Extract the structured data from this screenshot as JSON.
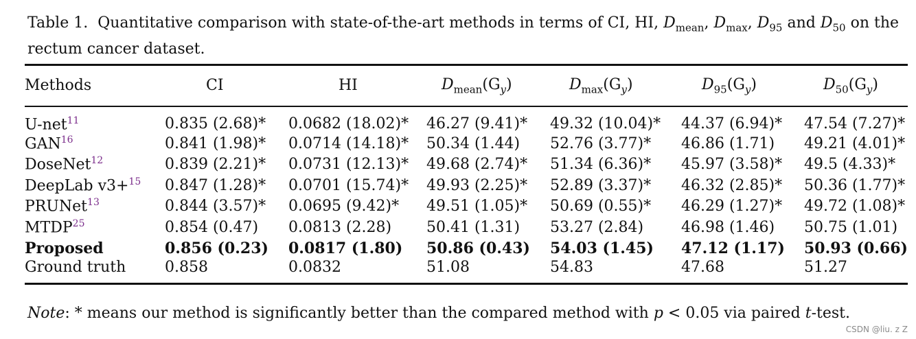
{
  "caption": {
    "label": "Table 1.",
    "line1_text": "Quantitative comparison with state-of-the-art methods in terms of CI, HI,",
    "dmean": "D",
    "dmean_sub": "mean",
    "dmax": "D",
    "dmax_sub": "max",
    "d95": "D",
    "d95_sub": "95",
    "and": "and",
    "d50": "D",
    "d50_sub": "50",
    "on_the": "on the",
    "line2": "rectum cancer dataset."
  },
  "table": {
    "headers": {
      "methods": "Methods",
      "ci": "CI",
      "hi": "HI",
      "dmean_d": "D",
      "dmean_sub": "mean",
      "dmean_unit": "(G",
      "dmax_d": "D",
      "dmax_sub": "max",
      "dmax_unit": "(G",
      "d95_d": "D",
      "d95_sub": "95",
      "d95_unit": "(G",
      "d50_d": "D",
      "d50_sub": "50",
      "d50_unit": "(G",
      "unit_sub": "y",
      "unit_close": ")"
    },
    "rows": [
      {
        "method": "U-net",
        "ref": "11",
        "ci": "0.835 (2.68)*",
        "hi": "0.0682 (18.02)*",
        "dmean": "46.27 (9.41)*",
        "dmax": "49.32 (10.04)*",
        "d95": "44.37 (6.94)*",
        "d50": "47.54 (7.27)*"
      },
      {
        "method": "GAN",
        "ref": "16",
        "ci": "0.841 (1.98)*",
        "hi": "0.0714 (14.18)*",
        "dmean": "50.34 (1.44)",
        "dmax": "52.76 (3.77)*",
        "d95": "46.86 (1.71)",
        "d50": "49.21 (4.01)*"
      },
      {
        "method": "DoseNet",
        "ref": "12",
        "ci": "0.839 (2.21)*",
        "hi": "0.0731 (12.13)*",
        "dmean": "49.68 (2.74)*",
        "dmax": "51.34 (6.36)*",
        "d95": "45.97 (3.58)*",
        "d50": "49.5 (4.33)*"
      },
      {
        "method": "DeepLab v3+",
        "ref": "15",
        "ci": "0.847 (1.28)*",
        "hi": "0.0701 (15.74)*",
        "dmean": "49.93 (2.25)*",
        "dmax": "52.89 (3.37)*",
        "d95": "46.32 (2.85)*",
        "d50": "50.36 (1.77)*"
      },
      {
        "method": "PRUNet",
        "ref": "13",
        "ci": "0.844 (3.57)*",
        "hi": "0.0695 (9.42)*",
        "dmean": "49.51 (1.05)*",
        "dmax": "50.69 (0.55)*",
        "d95": "46.29 (1.27)*",
        "d50": "49.72 (1.08)*"
      },
      {
        "method": "MTDP",
        "ref": "25",
        "ci": "0.854 (0.47)",
        "hi": "0.0813 (2.28)",
        "dmean": "50.41 (1.31)",
        "dmax": "53.27 (2.84)",
        "d95": "46.98 (1.46)",
        "d50": "50.75 (1.01)"
      },
      {
        "method": "Proposed",
        "ref": "",
        "ci": "0.856 (0.23)",
        "hi": "0.0817 (1.80)",
        "dmean": "50.86 (0.43)",
        "dmax": "54.03 (1.45)",
        "d95": "47.12 (1.17)",
        "d50": "50.93 (0.66)"
      },
      {
        "method": "Ground truth",
        "ref": "",
        "ci": "0.858",
        "hi": "0.0832",
        "dmean": "51.08",
        "dmax": "54.83",
        "d95": "47.68",
        "d50": "51.27"
      }
    ]
  },
  "note": {
    "label": "Note",
    "text_a": ": * means our method is significantly better than the compared method with",
    "p": "p",
    "text_b": "< 0.05 via paired",
    "t": "t",
    "text_c": "-test."
  },
  "watermark": "CSDN @liu. z Z"
}
